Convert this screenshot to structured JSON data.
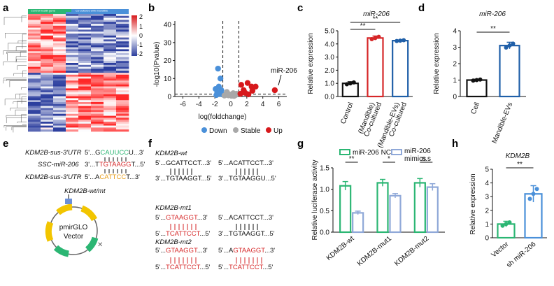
{
  "panels": {
    "a": "a",
    "b": "b",
    "c": "c",
    "d": "d",
    "e": "e",
    "f": "f",
    "g": "g",
    "h": "h"
  },
  "colors": {
    "red": "#d62728",
    "blue": "#1f5fa8",
    "green": "#2bb673",
    "lightblue": "#8fa8d8",
    "dot_blue": "#4a90d9",
    "dot_gray": "#a8a8a8",
    "dot_red": "#d7191c",
    "heat_hi": "#d7191c",
    "heat_lo": "#2c3e9e"
  },
  "heatmap": {
    "group_labels": [
      "Control health gene",
      "Co-cultured with mandible"
    ],
    "colorbar_ticks": [
      "2",
      "1",
      "0",
      "-1",
      "-2"
    ]
  },
  "volcano": {
    "ylabel": "-log10(Pvalue)",
    "xlabel": "log(foldchange)",
    "annotation": "miR-206",
    "legend": [
      "Down",
      "Stable",
      "Up"
    ]
  },
  "sig": {
    "double": "**",
    "single": "*",
    "ns": "n.s"
  },
  "mirna": {
    "kdm_sus_top": "KDM2B-sus-3'UTR",
    "ssc": "SSC-miR-206",
    "kdm_sus_bottom": "KDM2B-sus-3'UTR",
    "seq_top_pre": "5'...G",
    "seq_top_mid": "CAUUCC",
    "seq_top_post": "U...3'",
    "seq_mid_pre": "3'...T",
    "seq_mid_mid": "TGTAAGG",
    "seq_mid_post": "T...5'",
    "seq_bot_pre": "5'...A",
    "seq_bot_mid": "CATTCC",
    "seq_bot_post": "T...3'",
    "construct_label": "KDM2B-wt/mt",
    "vector_line1": "pmirGLO",
    "vector_line2": "Vector"
  },
  "seqpanel": {
    "wt_label": "KDM2B-wt",
    "mt1_label": "KDM2B-mt1",
    "mt2_label": "KDM2B-mt2",
    "wt_l_top": "5'...GCATTCCT...3'",
    "wt_l_bot": "3'...TGTAAGGT...5'",
    "wt_r_top": "5'...ACATTCCT...3'",
    "wt_r_bot": "3'...TGTAAGGU...5'",
    "mt1_l_top_pre": "5'...",
    "mt1_l_top_red": "GTAAGGT",
    "mt1_l_top_post": "...3'",
    "mt1_l_bot_pre": "5'...",
    "mt1_l_bot_red": "TCATTCCT",
    "mt1_l_bot_post": "...5'",
    "mt1_r_top": "5'...ACATTCCT...3'",
    "mt1_r_bot": "3'...TGTAAGGT...5'",
    "mt2_l_top_pre": "5'...",
    "mt2_l_top_red": "GTAAGGT",
    "mt2_l_top_post": "...3'",
    "mt2_l_bot_pre": "5'...",
    "mt2_l_bot_red": "TCATTCCT",
    "mt2_l_bot_post": "...5'",
    "mt2_r_top_pre": "5'...A",
    "mt2_r_top_red": "GTAAGGT",
    "mt2_r_top_post": "...3'",
    "mt2_r_bot_pre": "5'...",
    "mt2_r_bot_red": "TCATTCCT",
    "mt2_r_bot_post": "...5'"
  },
  "chart_data": [
    {
      "id": "b",
      "type": "scatter",
      "title": "",
      "xlabel": "log(foldchange)",
      "ylabel": "-log10(Pvalue)",
      "xlim": [
        -7,
        7
      ],
      "ylim": [
        0,
        42
      ],
      "xticks": [
        "-6",
        "-4",
        "-2",
        "0",
        "2",
        "4",
        "6"
      ],
      "yticks": [
        "0",
        "10",
        "20",
        "30",
        "40"
      ],
      "series": [
        {
          "name": "Down",
          "points": [
            [
              -1.6,
              15.5
            ],
            [
              -1.3,
              10
            ],
            [
              -1.5,
              5.5
            ],
            [
              -1.9,
              4.2
            ],
            [
              -1.2,
              3.5
            ],
            [
              -1.7,
              2.1
            ],
            [
              -1.4,
              1.5
            ],
            [
              -1.1,
              1.2
            ],
            [
              -1.8,
              0.8
            ]
          ]
        },
        {
          "name": "Stable",
          "points": [
            [
              -0.5,
              2.5
            ],
            [
              0.3,
              1.8
            ],
            [
              -0.2,
              1.2
            ],
            [
              0.6,
              0.8
            ],
            [
              -0.8,
              0.5
            ],
            [
              0.1,
              0.4
            ],
            [
              0.4,
              0.3
            ],
            [
              -0.3,
              0.6
            ],
            [
              0.7,
              1.5
            ],
            [
              -0.6,
              1.0
            ]
          ]
        },
        {
          "name": "Up",
          "points": [
            [
              1.3,
              6.5
            ],
            [
              2.1,
              7.5
            ],
            [
              2.6,
              5.5
            ],
            [
              3.1,
              5.5
            ],
            [
              1.6,
              3.5
            ],
            [
              2.7,
              3.2
            ],
            [
              1.8,
              2.0
            ],
            [
              1.2,
              1.5
            ],
            [
              2.2,
              1.2
            ],
            [
              5.5,
              3.5
            ]
          ]
        }
      ]
    },
    {
      "id": "c",
      "type": "bar",
      "title": "miR-206",
      "categories": [
        "Control",
        "Co-cultured (Mandible)",
        "Co-cultured (Mandible-EVs)"
      ],
      "values": [
        1.0,
        4.45,
        4.25
      ],
      "errors": [
        0.12,
        0.15,
        0.05
      ],
      "ylabel": "Relative expression",
      "ylim": [
        0,
        5
      ],
      "yticks": [
        "0.0",
        "1.0",
        "2.0",
        "3.0",
        "4.0",
        "5.0"
      ]
    },
    {
      "id": "d",
      "type": "bar",
      "title": "miR-206",
      "categories": [
        "Cell",
        "Mandible-EVs"
      ],
      "values": [
        1.0,
        3.1
      ],
      "errors": [
        0.05,
        0.2
      ],
      "ylabel": "Relative expression",
      "ylim": [
        0,
        4
      ],
      "yticks": [
        "0",
        "1",
        "2",
        "3",
        "4"
      ]
    },
    {
      "id": "g",
      "type": "bar",
      "title": "",
      "categories": [
        "KDM2B-wt",
        "KDM2B-mut1",
        "KDM2B-mut2"
      ],
      "series": [
        {
          "name": "miR-206 NC",
          "values": [
            1.08,
            1.15,
            1.15
          ],
          "errors": [
            0.1,
            0.08,
            0.1
          ]
        },
        {
          "name": "miR-206 mimics",
          "values": [
            0.45,
            0.85,
            1.05
          ],
          "errors": [
            0.04,
            0.05,
            0.08
          ]
        }
      ],
      "ylabel": "Relative luciferase activity",
      "ylim": [
        0,
        1.5
      ],
      "yticks": [
        "0.0",
        "0.5",
        "1.0",
        "1.5"
      ]
    },
    {
      "id": "h",
      "type": "bar",
      "title": "KDM2B",
      "categories": [
        "Vector",
        "sh miR-206"
      ],
      "values": [
        1.0,
        3.2
      ],
      "errors": [
        0.2,
        0.6
      ],
      "ylabel": "Relative expression",
      "ylim": [
        0,
        5
      ],
      "yticks": [
        "0",
        "1",
        "2",
        "3",
        "4",
        "5"
      ]
    }
  ]
}
